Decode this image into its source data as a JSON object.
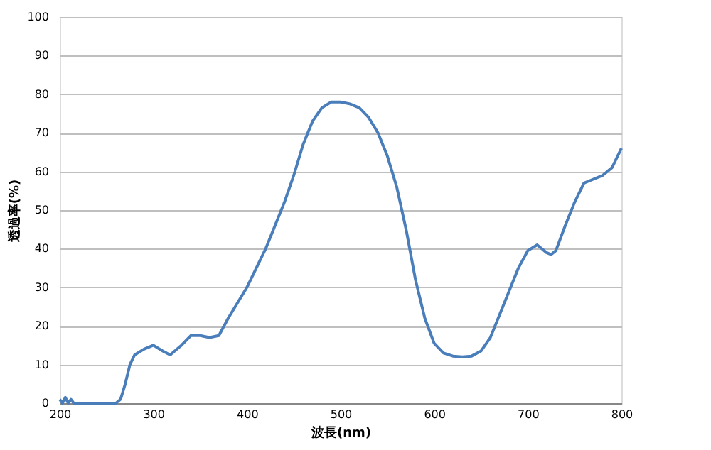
{
  "chart_data": {
    "type": "line",
    "xlabel": "波長(nm)",
    "ylabel": "透過率(%)",
    "x": [
      200,
      203,
      206,
      209,
      212,
      215,
      230,
      250,
      260,
      265,
      270,
      275,
      280,
      290,
      300,
      310,
      318,
      330,
      340,
      350,
      360,
      370,
      380,
      390,
      400,
      410,
      420,
      430,
      440,
      450,
      460,
      470,
      480,
      490,
      500,
      510,
      520,
      530,
      540,
      550,
      560,
      570,
      580,
      590,
      600,
      610,
      620,
      630,
      640,
      650,
      660,
      670,
      680,
      690,
      700,
      710,
      720,
      725,
      730,
      740,
      750,
      760,
      770,
      780,
      790,
      800
    ],
    "series": [
      {
        "color": "#4a7ebb",
        "values": [
          1,
          0,
          1.5,
          0,
          1,
          0,
          0,
          0,
          0,
          1,
          5,
          10,
          12.5,
          14,
          15,
          13.5,
          12.5,
          15,
          17.5,
          17.5,
          17,
          17.5,
          22,
          26,
          30,
          35,
          40,
          46,
          52,
          59,
          67,
          73,
          76.5,
          78,
          78,
          77.5,
          76.5,
          74,
          70,
          64,
          56,
          45,
          32,
          22,
          15.5,
          13,
          12.2,
          12,
          12.2,
          13.5,
          17,
          23,
          29,
          35,
          39.5,
          41,
          39,
          38.5,
          39.5,
          46,
          52,
          57,
          58,
          59,
          61,
          66
        ]
      }
    ],
    "xlim": [
      200,
      800
    ],
    "xticks": [
      200,
      300,
      400,
      500,
      600,
      700,
      800
    ],
    "ylim": [
      0,
      100
    ],
    "yticks": [
      0,
      10,
      20,
      30,
      40,
      50,
      60,
      70,
      80,
      90,
      100
    ],
    "grid": "y",
    "legend": false,
    "marker": "none",
    "line_style": "solid"
  }
}
